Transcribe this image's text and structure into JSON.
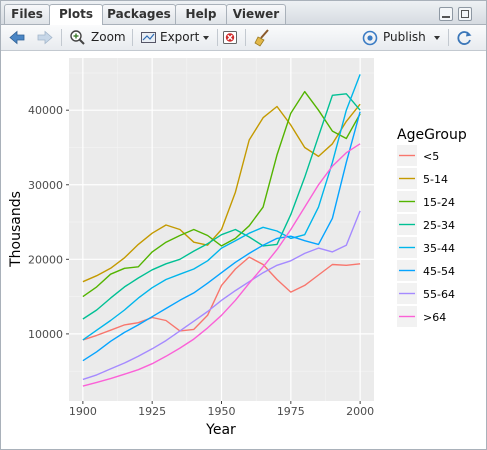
{
  "tabs": [
    {
      "label": "Files"
    },
    {
      "label": "Plots",
      "active": true
    },
    {
      "label": "Packages"
    },
    {
      "label": "Help"
    },
    {
      "label": "Viewer"
    }
  ],
  "toolbar": {
    "zoom_label": "Zoom",
    "export_label": "Export",
    "publish_label": "Publish"
  },
  "chart_data": {
    "type": "line",
    "title": "",
    "xlabel": "Year",
    "ylabel": "Thousands",
    "xlim": [
      1895,
      2005
    ],
    "ylim": [
      1000,
      47000
    ],
    "x_ticks": [
      1900,
      1925,
      1950,
      1975,
      2000
    ],
    "y_ticks": [
      10000,
      20000,
      30000,
      40000
    ],
    "x_tick_labels": [
      "1900",
      "1925",
      "1950",
      "1975",
      "2000"
    ],
    "y_tick_labels": [
      "10000",
      "20000",
      "30000",
      "40000"
    ],
    "grid": true,
    "legend_title": "AgeGroup",
    "legend_position": "right",
    "series": [
      {
        "name": "<5",
        "color": "#F8766D",
        "points": [
          [
            1900,
            9200
          ],
          [
            1905,
            9800
          ],
          [
            1910,
            10500
          ],
          [
            1915,
            11200
          ],
          [
            1920,
            11500
          ],
          [
            1925,
            12200
          ],
          [
            1930,
            11800
          ],
          [
            1935,
            10400
          ],
          [
            1940,
            10600
          ],
          [
            1945,
            12500
          ],
          [
            1950,
            16500
          ],
          [
            1955,
            18700
          ],
          [
            1960,
            20300
          ],
          [
            1965,
            19300
          ],
          [
            1970,
            17300
          ],
          [
            1975,
            15600
          ],
          [
            1980,
            16500
          ],
          [
            1985,
            17900
          ],
          [
            1990,
            19300
          ],
          [
            1995,
            19200
          ],
          [
            2000,
            19400
          ]
        ]
      },
      {
        "name": "5-14",
        "color": "#C49A00",
        "points": [
          [
            1900,
            17000
          ],
          [
            1905,
            17800
          ],
          [
            1910,
            18800
          ],
          [
            1915,
            20200
          ],
          [
            1920,
            22000
          ],
          [
            1925,
            23500
          ],
          [
            1930,
            24600
          ],
          [
            1935,
            24000
          ],
          [
            1940,
            22300
          ],
          [
            1945,
            21900
          ],
          [
            1950,
            24000
          ],
          [
            1955,
            29000
          ],
          [
            1960,
            36000
          ],
          [
            1965,
            39000
          ],
          [
            1970,
            40500
          ],
          [
            1975,
            38000
          ],
          [
            1980,
            35000
          ],
          [
            1985,
            33800
          ],
          [
            1990,
            35500
          ],
          [
            1995,
            38500
          ],
          [
            2000,
            40800
          ]
        ]
      },
      {
        "name": "15-24",
        "color": "#53B400",
        "points": [
          [
            1900,
            15000
          ],
          [
            1905,
            16300
          ],
          [
            1910,
            18000
          ],
          [
            1915,
            18800
          ],
          [
            1920,
            19000
          ],
          [
            1925,
            21000
          ],
          [
            1930,
            22300
          ],
          [
            1935,
            23200
          ],
          [
            1940,
            24000
          ],
          [
            1945,
            23200
          ],
          [
            1950,
            21800
          ],
          [
            1955,
            22800
          ],
          [
            1960,
            24500
          ],
          [
            1965,
            27000
          ],
          [
            1970,
            34000
          ],
          [
            1975,
            39600
          ],
          [
            1980,
            42500
          ],
          [
            1985,
            40000
          ],
          [
            1990,
            37200
          ],
          [
            1995,
            36200
          ],
          [
            2000,
            39500
          ]
        ]
      },
      {
        "name": "25-34",
        "color": "#00C094",
        "points": [
          [
            1900,
            12000
          ],
          [
            1905,
            13200
          ],
          [
            1910,
            14800
          ],
          [
            1915,
            16300
          ],
          [
            1920,
            17500
          ],
          [
            1925,
            18600
          ],
          [
            1930,
            19400
          ],
          [
            1935,
            20000
          ],
          [
            1940,
            21100
          ],
          [
            1945,
            22100
          ],
          [
            1950,
            23300
          ],
          [
            1955,
            24000
          ],
          [
            1960,
            23000
          ],
          [
            1965,
            21800
          ],
          [
            1970,
            22000
          ],
          [
            1975,
            26000
          ],
          [
            1980,
            31000
          ],
          [
            1985,
            36500
          ],
          [
            1990,
            42000
          ],
          [
            1995,
            42200
          ],
          [
            2000,
            40000
          ]
        ]
      },
      {
        "name": "35-44",
        "color": "#00B6EB",
        "points": [
          [
            1900,
            9200
          ],
          [
            1905,
            10500
          ],
          [
            1910,
            11800
          ],
          [
            1915,
            13200
          ],
          [
            1920,
            14800
          ],
          [
            1925,
            16200
          ],
          [
            1930,
            17300
          ],
          [
            1935,
            18000
          ],
          [
            1940,
            18700
          ],
          [
            1945,
            19800
          ],
          [
            1950,
            21500
          ],
          [
            1955,
            22500
          ],
          [
            1960,
            23500
          ],
          [
            1965,
            24300
          ],
          [
            1970,
            23800
          ],
          [
            1975,
            22800
          ],
          [
            1980,
            23300
          ],
          [
            1985,
            27000
          ],
          [
            1990,
            33000
          ],
          [
            1995,
            40000
          ],
          [
            2000,
            44800
          ]
        ]
      },
      {
        "name": "45-54",
        "color": "#06A4FF",
        "points": [
          [
            1900,
            6400
          ],
          [
            1905,
            7600
          ],
          [
            1910,
            9000
          ],
          [
            1915,
            10200
          ],
          [
            1920,
            11200
          ],
          [
            1925,
            12300
          ],
          [
            1930,
            13400
          ],
          [
            1935,
            14500
          ],
          [
            1940,
            15500
          ],
          [
            1945,
            16800
          ],
          [
            1950,
            18200
          ],
          [
            1955,
            19600
          ],
          [
            1960,
            20800
          ],
          [
            1965,
            21900
          ],
          [
            1970,
            22800
          ],
          [
            1975,
            23100
          ],
          [
            1980,
            22500
          ],
          [
            1985,
            22000
          ],
          [
            1990,
            25500
          ],
          [
            1995,
            33000
          ],
          [
            2000,
            39800
          ]
        ]
      },
      {
        "name": "55-64",
        "color": "#A58AFF",
        "points": [
          [
            1900,
            3900
          ],
          [
            1905,
            4500
          ],
          [
            1910,
            5300
          ],
          [
            1915,
            6100
          ],
          [
            1920,
            7000
          ],
          [
            1925,
            8000
          ],
          [
            1930,
            9100
          ],
          [
            1935,
            10400
          ],
          [
            1940,
            11700
          ],
          [
            1945,
            13000
          ],
          [
            1950,
            14500
          ],
          [
            1955,
            15800
          ],
          [
            1960,
            17000
          ],
          [
            1965,
            18200
          ],
          [
            1970,
            19200
          ],
          [
            1975,
            19800
          ],
          [
            1980,
            20800
          ],
          [
            1985,
            21500
          ],
          [
            1990,
            21000
          ],
          [
            1995,
            21900
          ],
          [
            2000,
            26500
          ]
        ]
      },
      {
        "name": ">64",
        "color": "#FB61D7",
        "points": [
          [
            1900,
            3000
          ],
          [
            1905,
            3500
          ],
          [
            1910,
            4000
          ],
          [
            1915,
            4600
          ],
          [
            1920,
            5200
          ],
          [
            1925,
            6000
          ],
          [
            1930,
            7000
          ],
          [
            1935,
            8100
          ],
          [
            1940,
            9300
          ],
          [
            1945,
            10800
          ],
          [
            1950,
            12500
          ],
          [
            1955,
            14500
          ],
          [
            1960,
            16800
          ],
          [
            1965,
            19000
          ],
          [
            1970,
            21300
          ],
          [
            1975,
            24000
          ],
          [
            1980,
            27000
          ],
          [
            1985,
            30000
          ],
          [
            1990,
            32500
          ],
          [
            1995,
            34300
          ],
          [
            2000,
            35500
          ]
        ]
      }
    ]
  }
}
